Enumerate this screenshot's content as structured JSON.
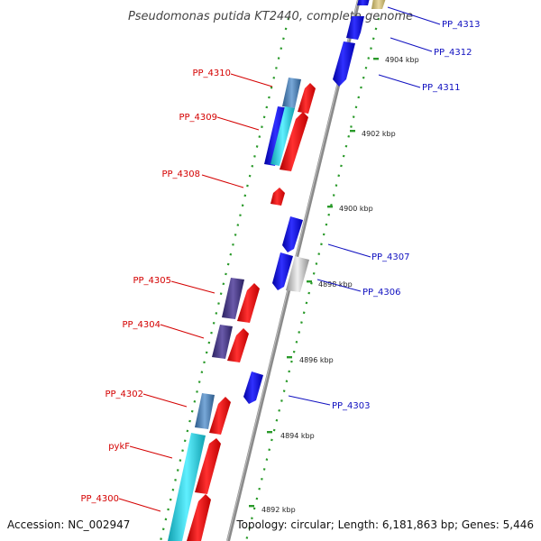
{
  "title": "Pseudomonas putida KT2440, complete genome",
  "footer": {
    "accession": "Accession: NC_002947",
    "topology": "Topology: circular; Length: 6,181,863 bp; Genes: 5,446"
  },
  "colors": {
    "red": "#ee1111",
    "blue": "#1a1aee",
    "steel": "#4a7fb5",
    "cyan": "#22c8d8",
    "purple": "#4b3f8a",
    "gray": "#c4c4c4",
    "olive": "#c8b870",
    "label_red": "#d40000",
    "label_blue": "#1010c0",
    "dots": "#2a9a2a"
  },
  "scale_ticks": [
    "4904 kbp",
    "4902 kbp",
    "4900 kbp",
    "4898 kbp",
    "4896 kbp",
    "4894 kbp",
    "4892 kbp"
  ],
  "labels_left": [
    "PP_4310",
    "PP_4309",
    "PP_4308",
    "PP_4305",
    "PP_4304",
    "PP_4302",
    "pykF",
    "PP_4300"
  ],
  "labels_right": [
    "PP_4313",
    "PP_4312",
    "PP_4311",
    "PP_4307",
    "PP_4306",
    "PP_4303"
  ]
}
